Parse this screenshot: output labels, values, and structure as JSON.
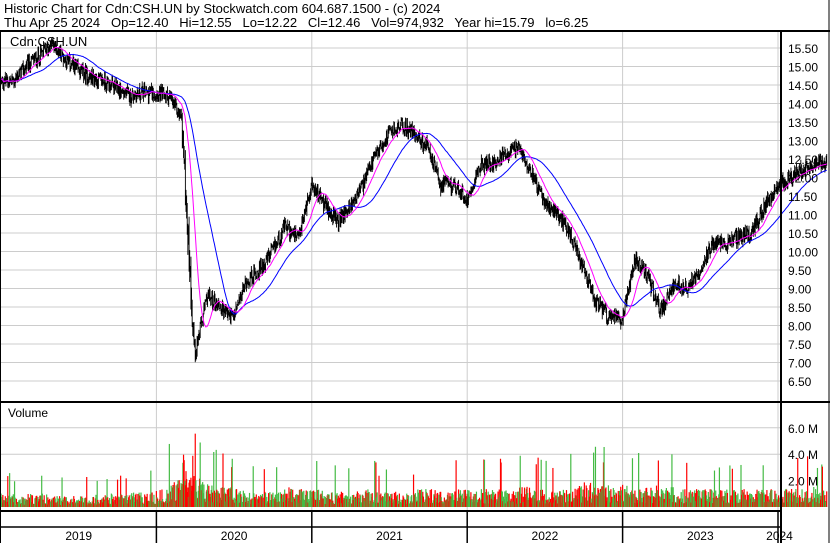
{
  "header": {
    "line1": "Historic Chart for Cdn:CSH.UN by Stockwatch.com 604.687.1500 - (c) 2024",
    "line2": "Thu Apr 25 2024   Op=12.40   Hi=12.55   Lo=12.22   Cl=12.46   Vol=974,932   Year hi=15.79   lo=6.25"
  },
  "chart_data": [
    {
      "type": "line",
      "title": "Cdn:CSH.UN",
      "style": "daily high-low bars with moving averages",
      "ylim": [
        6.0,
        15.8
      ],
      "y_ticks": [
        "15.50",
        "15.00",
        "14.50",
        "14.00",
        "13.50",
        "13.00",
        "12.50",
        "12.00",
        "11.50",
        "11.00",
        "10.50",
        "10.00",
        "9.50",
        "9.00",
        "8.50",
        "8.00",
        "7.50",
        "7.00",
        "6.50"
      ],
      "x_ticks": [
        "2019",
        "2020",
        "2021",
        "2022",
        "2023",
        "2024"
      ],
      "grid": true,
      "colors": {
        "price": "#000000",
        "ma_short": "#ff00ff",
        "ma_long": "#0000ff"
      },
      "monthly_close": {
        "start": "2019-01",
        "values": [
          14.6,
          15.0,
          15.3,
          15.6,
          15.2,
          14.9,
          14.7,
          14.6,
          14.4,
          14.2,
          14.3,
          14.3,
          14.2,
          13.6,
          7.2,
          8.8,
          8.5,
          8.2,
          9.2,
          9.5,
          10.0,
          10.7,
          10.3,
          11.8,
          11.3,
          10.8,
          11.2,
          11.8,
          12.6,
          13.2,
          13.4,
          13.2,
          12.8,
          11.8,
          11.8,
          11.4,
          12.3,
          12.4,
          12.6,
          12.8,
          12.2,
          11.3,
          11.0,
          10.5,
          9.5,
          8.6,
          8.2,
          8.2,
          9.8,
          9.3,
          8.4,
          9.1,
          9.0,
          9.5,
          10.2,
          10.2,
          10.4,
          10.5,
          11.2,
          11.8,
          12.0,
          12.2,
          12.4,
          12.46
        ]
      }
    },
    {
      "type": "bar",
      "title": "Volume",
      "y_ticks": [
        "6.0 M",
        "4.0 M",
        "2.0 M"
      ],
      "ylim": [
        0,
        6.8
      ],
      "colors": {
        "up": "#44bb44",
        "down": "#ff0000"
      },
      "monthly_avg_volume_millions": [
        0.6,
        0.5,
        0.6,
        0.6,
        0.5,
        0.5,
        0.5,
        0.6,
        0.6,
        0.6,
        0.7,
        0.7,
        0.8,
        1.2,
        2.5,
        1.3,
        1.0,
        0.9,
        0.8,
        0.7,
        0.7,
        0.8,
        0.9,
        0.8,
        0.8,
        0.7,
        0.7,
        0.7,
        0.8,
        0.7,
        0.7,
        0.6,
        0.8,
        0.8,
        0.7,
        0.8,
        0.9,
        0.8,
        0.8,
        0.8,
        0.9,
        0.9,
        0.8,
        0.8,
        1.0,
        1.1,
        1.0,
        1.0,
        1.0,
        0.9,
        1.0,
        0.9,
        0.8,
        0.8,
        0.8,
        0.8,
        0.8,
        0.8,
        0.8,
        0.8,
        0.9,
        0.9,
        0.9,
        0.8
      ]
    }
  ]
}
